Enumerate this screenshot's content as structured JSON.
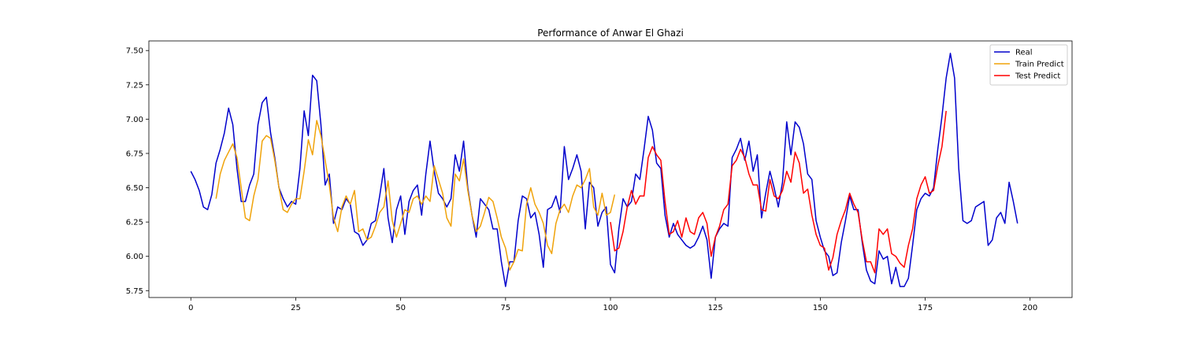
{
  "chart_data": {
    "type": "line",
    "title": "Performance of Anwar El Ghazi",
    "xlabel": "",
    "ylabel": "",
    "xlim": [
      -10,
      210
    ],
    "ylim": [
      5.7,
      7.57
    ],
    "xticks": [
      0,
      25,
      50,
      75,
      100,
      125,
      150,
      175,
      200
    ],
    "yticks": [
      5.75,
      6.0,
      6.25,
      6.5,
      6.75,
      7.0,
      7.25,
      7.5
    ],
    "xtick_labels": [
      "0",
      "25",
      "50",
      "75",
      "100",
      "125",
      "150",
      "175",
      "200"
    ],
    "ytick_labels": [
      "5.75",
      "6.00",
      "6.25",
      "6.50",
      "6.75",
      "7.00",
      "7.25",
      "7.50"
    ],
    "grid": false,
    "legend_position": "top-right",
    "series": [
      {
        "name": "Real",
        "color": "#0000cc",
        "x_start": 0,
        "values": [
          6.62,
          6.56,
          6.48,
          6.36,
          6.34,
          6.45,
          6.68,
          6.78,
          6.9,
          7.08,
          6.96,
          6.64,
          6.4,
          6.4,
          6.52,
          6.6,
          6.96,
          7.12,
          7.16,
          6.9,
          6.72,
          6.5,
          6.42,
          6.36,
          6.4,
          6.38,
          6.64,
          7.06,
          6.88,
          7.32,
          7.28,
          6.96,
          6.52,
          6.6,
          6.24,
          6.36,
          6.34,
          6.42,
          6.38,
          6.18,
          6.16,
          6.08,
          6.12,
          6.24,
          6.26,
          6.44,
          6.64,
          6.28,
          6.1,
          6.34,
          6.44,
          6.16,
          6.4,
          6.48,
          6.52,
          6.3,
          6.6,
          6.84,
          6.62,
          6.46,
          6.42,
          6.36,
          6.42,
          6.74,
          6.62,
          6.84,
          6.5,
          6.3,
          6.14,
          6.42,
          6.38,
          6.34,
          6.2,
          6.2,
          5.96,
          5.78,
          5.96,
          5.96,
          6.26,
          6.44,
          6.42,
          6.28,
          6.32,
          6.16,
          5.92,
          6.34,
          6.36,
          6.44,
          6.32,
          6.8,
          6.56,
          6.64,
          6.74,
          6.62,
          6.2,
          6.54,
          6.5,
          6.22,
          6.32,
          6.36,
          5.94,
          5.88,
          6.2,
          6.42,
          6.36,
          6.4,
          6.6,
          6.56,
          6.78,
          7.02,
          6.92,
          6.68,
          6.64,
          6.3,
          6.14,
          6.24,
          6.16,
          6.12,
          6.08,
          6.06,
          6.08,
          6.14,
          6.22,
          6.12,
          5.84,
          6.14,
          6.2,
          6.24,
          6.22,
          6.72,
          6.78,
          6.86,
          6.7,
          6.84,
          6.62,
          6.74,
          6.28,
          6.46,
          6.62,
          6.5,
          6.36,
          6.54,
          6.98,
          6.74,
          6.98,
          6.94,
          6.82,
          6.6,
          6.56,
          6.26,
          6.14,
          6.04,
          6.0,
          5.86,
          5.88,
          6.1,
          6.26,
          6.44,
          6.34,
          6.34,
          6.1,
          5.9,
          5.82,
          5.8,
          6.04,
          5.98,
          6.0,
          5.8,
          5.92,
          5.78,
          5.78,
          5.84,
          6.08,
          6.34,
          6.42,
          6.46,
          6.44,
          6.5,
          6.78,
          7.02,
          7.3,
          7.48,
          7.3,
          6.64,
          6.26,
          6.24,
          6.26,
          6.36,
          6.38,
          6.4,
          6.08,
          6.12,
          6.28,
          6.32,
          6.24,
          6.54,
          6.4,
          6.24
        ]
      },
      {
        "name": "Train Predict",
        "color": "#f0a30a",
        "x_start": 6,
        "values": [
          6.42,
          6.6,
          6.7,
          6.76,
          6.82,
          6.72,
          6.5,
          6.28,
          6.26,
          6.44,
          6.56,
          6.84,
          6.88,
          6.86,
          6.7,
          6.5,
          6.34,
          6.32,
          6.38,
          6.42,
          6.42,
          6.62,
          6.85,
          6.74,
          6.99,
          6.88,
          6.7,
          6.52,
          6.28,
          6.18,
          6.36,
          6.44,
          6.38,
          6.48,
          6.18,
          6.2,
          6.12,
          6.14,
          6.22,
          6.32,
          6.36,
          6.55,
          6.26,
          6.14,
          6.24,
          6.34,
          6.32,
          6.42,
          6.44,
          6.38,
          6.44,
          6.4,
          6.66,
          6.56,
          6.46,
          6.28,
          6.22,
          6.6,
          6.55,
          6.71,
          6.48,
          6.3,
          6.18,
          6.22,
          6.32,
          6.43,
          6.4,
          6.28,
          6.14,
          6.06,
          5.9,
          5.96,
          6.05,
          6.04,
          6.38,
          6.5,
          6.38,
          6.32,
          6.24,
          6.08,
          6.02,
          6.24,
          6.34,
          6.38,
          6.32,
          6.44,
          6.52,
          6.5,
          6.56,
          6.64,
          6.36,
          6.3,
          6.46,
          6.3,
          6.32,
          6.45
        ]
      },
      {
        "name": "Test Predict",
        "color": "#ff0000",
        "x_start": 100,
        "values": [
          6.25,
          6.04,
          6.06,
          6.18,
          6.36,
          6.48,
          6.38,
          6.44,
          6.44,
          6.72,
          6.8,
          6.74,
          6.7,
          6.4,
          6.16,
          6.18,
          6.26,
          6.14,
          6.28,
          6.18,
          6.16,
          6.28,
          6.32,
          6.24,
          6.0,
          6.14,
          6.22,
          6.34,
          6.38,
          6.66,
          6.7,
          6.78,
          6.72,
          6.6,
          6.52,
          6.52,
          6.34,
          6.33,
          6.56,
          6.44,
          6.42,
          6.48,
          6.62,
          6.54,
          6.76,
          6.68,
          6.46,
          6.49,
          6.3,
          6.16,
          6.08,
          6.06,
          5.9,
          5.99,
          6.16,
          6.26,
          6.34,
          6.46,
          6.38,
          6.32,
          6.12,
          5.96,
          5.96,
          5.88,
          6.2,
          6.16,
          6.2,
          6.02,
          6.0,
          5.95,
          5.92,
          6.08,
          6.2,
          6.42,
          6.52,
          6.58,
          6.46,
          6.48,
          6.66,
          6.8,
          7.06
        ]
      }
    ]
  }
}
